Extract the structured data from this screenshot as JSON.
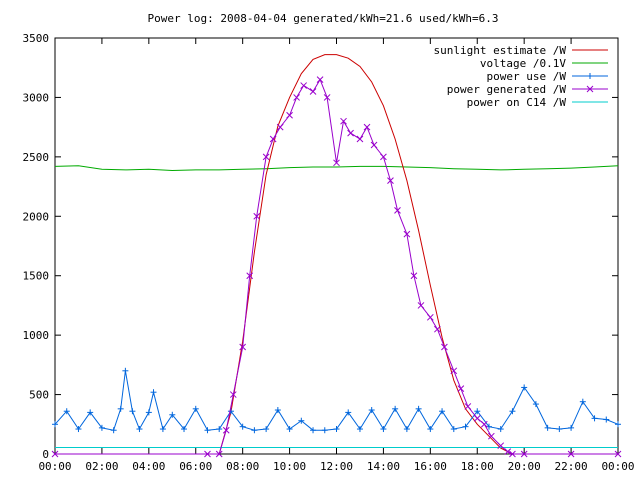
{
  "chart_data": {
    "type": "line",
    "title": "Power log: 2008-04-04 generated/kWh=21.6 used/kWh=6.3",
    "xlabel": "",
    "ylabel": "",
    "x_range_hours": [
      0,
      24
    ],
    "xlim": [
      "00:00",
      "24:00"
    ],
    "ylim": [
      0,
      3500
    ],
    "x_ticks": [
      "00:00",
      "02:00",
      "04:00",
      "06:00",
      "08:00",
      "10:00",
      "12:00",
      "14:00",
      "16:00",
      "18:00",
      "20:00",
      "22:00",
      "00:00"
    ],
    "y_ticks": [
      0,
      500,
      1000,
      1500,
      2000,
      2500,
      3000,
      3500
    ],
    "grid": false,
    "legend_position": "top-right",
    "series": [
      {
        "name": "sunlight estimate /W",
        "color": "#cc0000",
        "marker": "none",
        "x": [
          7.0,
          7.5,
          8.0,
          8.5,
          9.0,
          9.5,
          10.0,
          10.5,
          11.0,
          11.5,
          12.0,
          12.5,
          13.0,
          13.5,
          14.0,
          14.5,
          15.0,
          15.5,
          16.0,
          16.5,
          17.0,
          17.5,
          18.0,
          18.5,
          19.0,
          19.5
        ],
        "values": [
          0,
          350,
          950,
          1700,
          2350,
          2760,
          3000,
          3200,
          3320,
          3360,
          3360,
          3330,
          3260,
          3130,
          2930,
          2650,
          2300,
          1880,
          1420,
          980,
          620,
          380,
          250,
          150,
          50,
          0
        ]
      },
      {
        "name": "voltage /0.1V",
        "color": "#00aa00",
        "marker": "none",
        "x": [
          0,
          1,
          2,
          3,
          4,
          5,
          6,
          7,
          8,
          9,
          10,
          11,
          12,
          13,
          14,
          15,
          16,
          17,
          18,
          19,
          20,
          21,
          22,
          23,
          24
        ],
        "values": [
          2420,
          2425,
          2395,
          2390,
          2395,
          2385,
          2390,
          2390,
          2395,
          2400,
          2410,
          2415,
          2415,
          2420,
          2420,
          2415,
          2410,
          2400,
          2395,
          2390,
          2395,
          2400,
          2405,
          2415,
          2425
        ]
      },
      {
        "name": "power use /W",
        "color": "#0066dd",
        "marker": "+",
        "x": [
          0,
          0.5,
          1,
          1.5,
          2,
          2.5,
          2.8,
          3,
          3.3,
          3.6,
          4,
          4.2,
          4.6,
          5,
          5.5,
          6,
          6.5,
          7,
          7.5,
          8,
          8.5,
          9,
          9.5,
          10,
          10.5,
          11,
          11.5,
          12,
          12.5,
          13,
          13.5,
          14,
          14.5,
          15,
          15.5,
          16,
          16.5,
          17,
          17.5,
          18,
          18.5,
          19,
          19.5,
          20,
          20.5,
          21,
          21.5,
          22,
          22.5,
          23,
          23.5,
          24
        ],
        "values": [
          250,
          360,
          210,
          350,
          220,
          200,
          380,
          700,
          360,
          210,
          350,
          520,
          210,
          330,
          210,
          380,
          200,
          210,
          360,
          230,
          200,
          210,
          370,
          210,
          280,
          200,
          200,
          210,
          350,
          210,
          370,
          210,
          380,
          210,
          380,
          210,
          360,
          210,
          230,
          360,
          230,
          210,
          360,
          560,
          420,
          220,
          210,
          220,
          440,
          300,
          290,
          250
        ]
      },
      {
        "name": "power generated /W",
        "color": "#9900cc",
        "marker": "x",
        "x": [
          0,
          6.5,
          7.0,
          7.3,
          7.6,
          8.0,
          8.3,
          8.6,
          9.0,
          9.3,
          9.6,
          10.0,
          10.3,
          10.6,
          11.0,
          11.3,
          11.6,
          12.0,
          12.3,
          12.6,
          13.0,
          13.3,
          13.6,
          14.0,
          14.3,
          14.6,
          15.0,
          15.3,
          15.6,
          16.0,
          16.3,
          16.6,
          17.0,
          17.3,
          17.6,
          18.0,
          18.3,
          18.6,
          19.0,
          19.3,
          19.5,
          20.0,
          22.0,
          24.0
        ],
        "values": [
          0,
          0,
          0,
          200,
          500,
          900,
          1500,
          2000,
          2500,
          2650,
          2750,
          2850,
          3000,
          3100,
          3050,
          3150,
          3000,
          2450,
          2800,
          2700,
          2650,
          2750,
          2600,
          2500,
          2300,
          2050,
          1850,
          1500,
          1250,
          1150,
          1050,
          900,
          700,
          550,
          400,
          300,
          250,
          150,
          70,
          20,
          0,
          0,
          0,
          0
        ]
      },
      {
        "name": "power on C14 /W",
        "color": "#00cccc",
        "marker": "none",
        "x": [
          0,
          24
        ],
        "values": [
          55,
          55
        ]
      }
    ]
  }
}
